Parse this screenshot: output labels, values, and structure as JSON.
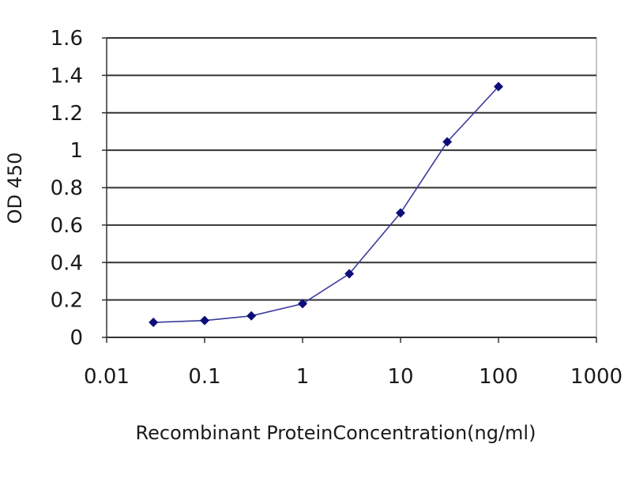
{
  "chart_data": {
    "type": "line",
    "title": "",
    "xlabel": "Recombinant ProteinConcentration(ng/ml)",
    "ylabel": "OD 450",
    "x_scale": "log",
    "xlim": [
      0.01,
      1000
    ],
    "ylim": [
      0,
      1.6
    ],
    "x_ticks": [
      0.01,
      0.1,
      1,
      10,
      100,
      1000
    ],
    "x_tick_labels": [
      "0.01",
      "0.1",
      "1",
      "10",
      "100",
      "1000"
    ],
    "y_ticks": [
      0,
      0.2,
      0.4,
      0.6,
      0.8,
      1,
      1.2,
      1.4,
      1.6
    ],
    "y_tick_labels": [
      "0",
      "0.2",
      "0.4",
      "0.6",
      "0.8",
      "1",
      "1.2",
      "1.4",
      "1.6"
    ],
    "grid": "horizontal",
    "legend": "none",
    "series": [
      {
        "x": [
          0.03,
          0.1,
          0.3,
          1,
          3,
          10,
          30,
          100
        ],
        "y": [
          0.08,
          0.09,
          0.115,
          0.18,
          0.34,
          0.665,
          1.045,
          1.34
        ]
      }
    ],
    "colors": {
      "line": "#3b3b9e",
      "marker": "#0d0d7a",
      "grid": "#333333",
      "axis": "#333333",
      "plot_background": "#ffffff"
    }
  }
}
